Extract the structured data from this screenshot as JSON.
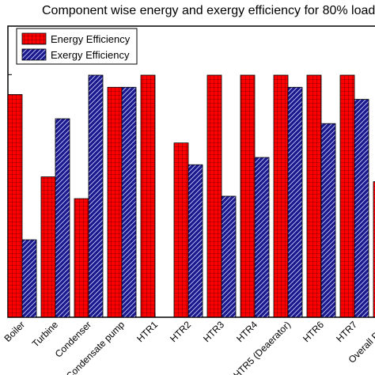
{
  "chart_data": {
    "type": "bar",
    "title": "Component wise energy and exergy efficiency for 80% load",
    "xlabel": "",
    "ylabel": "",
    "categories": [
      "Boiler",
      "Turbine",
      "Condenser",
      "Condensate pump",
      "HTR1",
      "HTR2",
      "HTR3",
      "HTR4",
      "HTR5 (Deaerator)",
      "HTR6",
      "HTR7",
      "Overall Plant"
    ],
    "ylim": [
      0,
      100
    ],
    "series": [
      {
        "name": "Energy Efficiency",
        "color": "#ff0000",
        "pattern": "grid",
        "values": [
          92,
          58,
          49,
          95,
          100,
          72,
          100,
          100,
          100,
          100,
          100,
          56
        ]
      },
      {
        "name": "Exergy Efficiency",
        "color": "#1a1a8c",
        "pattern": "diagonal-hatch",
        "values": [
          32,
          82,
          100,
          95,
          0,
          63,
          50,
          66,
          95,
          80,
          90,
          0
        ]
      }
    ],
    "legend_position": "top-left",
    "grid": false
  }
}
